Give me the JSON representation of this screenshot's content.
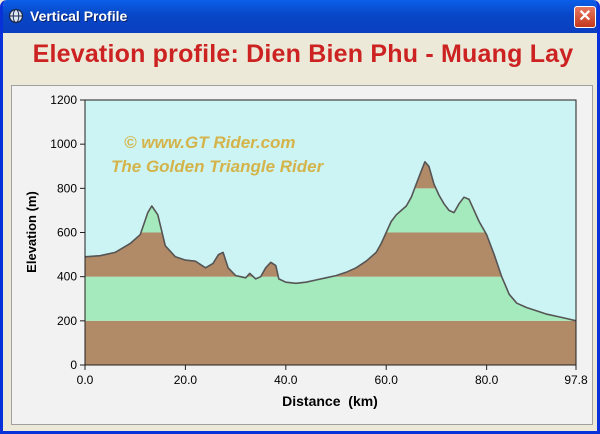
{
  "window": {
    "title": "Vertical Profile",
    "close_glyph": "✕",
    "icon": "globe-icon"
  },
  "heading": "Elevation profile: Dien Bien Phu - Muang Lay",
  "watermark": {
    "line1": "©  www.GT Rider.com",
    "line2": "The Golden Triangle Rider"
  },
  "colors": {
    "sky": "#cdf4f4",
    "green": "#a4eabd",
    "brown": "#b18a68",
    "profile_line": "#555555",
    "heading": "#cc2222",
    "watermark": "#d4b44a"
  },
  "chart_data": {
    "type": "area",
    "xlabel": "Distance  (km)",
    "ylabel": "Elevation (m)",
    "xlim": [
      0,
      97.8
    ],
    "ylim": [
      0,
      1200
    ],
    "x_ticks": [
      "0.0",
      "20.0",
      "40.0",
      "60.0",
      "80.0",
      "97.8"
    ],
    "x_tick_values": [
      0,
      20,
      40,
      60,
      80,
      97.8
    ],
    "y_ticks": [
      "0",
      "200",
      "400",
      "600",
      "800",
      "1000",
      "1200"
    ],
    "y_tick_values": [
      0,
      200,
      400,
      600,
      800,
      1000,
      1200
    ],
    "bands": [
      {
        "from": 0,
        "to": 200,
        "color": "#b18a68"
      },
      {
        "from": 200,
        "to": 400,
        "color": "#a4eabd"
      },
      {
        "from": 400,
        "to": 600,
        "color": "#b18a68"
      },
      {
        "from": 600,
        "to": 800,
        "color": "#a4eabd"
      },
      {
        "from": 800,
        "to": 1200,
        "color": "#b18a68"
      }
    ],
    "x": [
      0,
      3,
      6,
      9,
      11,
      12.5,
      13.3,
      14.5,
      16,
      18,
      20,
      22,
      24,
      25.5,
      26.6,
      27.5,
      28.5,
      30,
      31,
      32,
      32.8,
      34,
      35,
      36,
      37,
      38,
      38.6,
      40,
      42,
      44,
      46,
      48,
      50,
      52,
      54,
      56,
      58,
      59,
      60,
      61,
      62,
      63,
      64,
      65,
      66,
      67,
      67.7,
      68.5,
      69.5,
      70.5,
      71.5,
      72.5,
      73.5,
      74.5,
      75.5,
      76.5,
      77.5,
      78.5,
      80,
      81.5,
      83,
      84.5,
      86,
      88,
      90,
      92,
      94,
      96,
      97.8
    ],
    "values": [
      490,
      495,
      510,
      550,
      590,
      690,
      720,
      680,
      540,
      490,
      475,
      470,
      440,
      460,
      500,
      510,
      440,
      405,
      400,
      395,
      415,
      390,
      400,
      440,
      465,
      450,
      390,
      375,
      370,
      375,
      385,
      395,
      405,
      420,
      440,
      470,
      510,
      550,
      600,
      650,
      680,
      700,
      720,
      760,
      820,
      880,
      920,
      900,
      820,
      770,
      730,
      700,
      690,
      730,
      760,
      750,
      700,
      650,
      590,
      500,
      400,
      320,
      280,
      260,
      245,
      230,
      220,
      210,
      200
    ]
  }
}
